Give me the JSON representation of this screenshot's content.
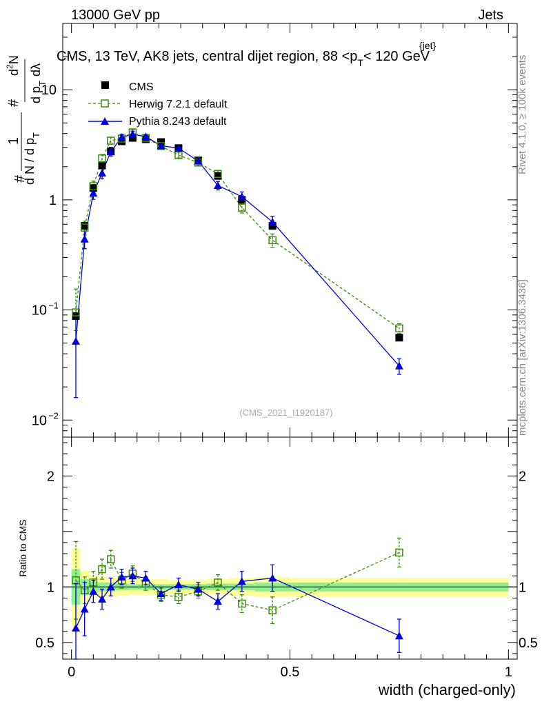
{
  "header": {
    "energy": "13000 GeV pp",
    "category": "Jets"
  },
  "side_labels": {
    "rivet": "Rivet 4.1.0, ≥ 100k events",
    "source": "mcplots.cern.ch [arXiv:1306.3436]"
  },
  "watermark": "(CMS_2021_I1920187)",
  "chart_data": {
    "type": "line",
    "title": "CMS, 13 TeV, AK8 jets, central dijet region, 88 <p_T^{jet}< 120 GeV",
    "title_parts": {
      "main": "CMS, 13 TeV, AK8 jets, central dijet region, 88 <p",
      "sub": "T",
      "sup": "{jet}",
      "tail": "< 120 GeV"
    },
    "xlabel": "width (charged-only)",
    "ylabel": "1/N dN/dp_T dλ",
    "ylabel_parts": {
      "hash1": "#",
      "one": "1",
      "denom": "d N / d p",
      "sub": "T",
      "hash2": "#",
      "d2N": "d",
      "sq": "2",
      "N": "N",
      "dpT": "d p",
      "sub2": "T",
      "dlambda": "dλ"
    },
    "xlim": [
      -0.02,
      1.02
    ],
    "ylim_log": [
      0.007,
      40
    ],
    "ratio_ylabel": "Ratio to CMS",
    "ratio_ylim": [
      0.35,
      2.35
    ],
    "x_ticks": [
      {
        "v": 0,
        "label": "0"
      },
      {
        "v": 0.5,
        "label": "0.5"
      },
      {
        "v": 1,
        "label": "1"
      }
    ],
    "y_ticks": [
      {
        "v": 10,
        "base": "10",
        "exp": ""
      },
      {
        "v": 1,
        "base": "1",
        "exp": ""
      },
      {
        "v": 0.1,
        "base": "10",
        "exp": "−1"
      },
      {
        "v": 0.01,
        "base": "10",
        "exp": "−2"
      }
    ],
    "ratio_ticks": [
      {
        "v": 0.5,
        "label": "0.5"
      },
      {
        "v": 1,
        "label": "1"
      },
      {
        "v": 2,
        "label": "2"
      }
    ],
    "x": [
      0.01,
      0.03,
      0.05,
      0.07,
      0.09,
      0.115,
      0.14,
      0.17,
      0.205,
      0.245,
      0.29,
      0.335,
      0.39,
      0.46,
      0.75
    ],
    "series": [
      {
        "name": "CMS",
        "color": "#000000",
        "marker": "square",
        "values": [
          0.088,
          0.58,
          1.28,
          2.05,
          2.75,
          3.4,
          3.65,
          3.55,
          3.35,
          2.95,
          2.28,
          1.65,
          1.0,
          0.58,
          0.056
        ]
      },
      {
        "name": "Herwig 7.2.1 default",
        "color": "#3a8a0a",
        "marker": "open-square",
        "dash": true,
        "values": [
          0.095,
          0.56,
          1.33,
          2.38,
          3.45,
          3.6,
          4.1,
          3.65,
          3.08,
          2.55,
          2.18,
          1.72,
          0.85,
          0.43,
          0.068
        ],
        "err_lo": [
          0.03,
          0.08,
          0.15,
          0.2,
          0.25,
          0.25,
          0.25,
          0.2,
          0.18,
          0.15,
          0.12,
          0.12,
          0.09,
          0.06,
          0.007
        ],
        "err_hi": [
          0.06,
          0.08,
          0.15,
          0.2,
          0.25,
          0.25,
          0.25,
          0.2,
          0.18,
          0.15,
          0.12,
          0.12,
          0.09,
          0.06,
          0.007
        ]
      },
      {
        "name": "Pythia 8.243 default",
        "color": "#0000dd",
        "marker": "triangle",
        "values": [
          0.052,
          0.44,
          1.15,
          1.75,
          2.75,
          3.7,
          3.95,
          3.75,
          3.1,
          2.95,
          2.25,
          1.35,
          1.07,
          0.63,
          0.031
        ],
        "err_lo": [
          0.036,
          0.08,
          0.14,
          0.2,
          0.25,
          0.25,
          0.25,
          0.2,
          0.18,
          0.15,
          0.12,
          0.12,
          0.11,
          0.08,
          0.005
        ],
        "err_hi": [
          0.04,
          0.08,
          0.14,
          0.2,
          0.25,
          0.25,
          0.25,
          0.2,
          0.18,
          0.15,
          0.12,
          0.12,
          0.11,
          0.08,
          0.005
        ]
      }
    ],
    "ratio": {
      "x": [
        0.01,
        0.03,
        0.05,
        0.07,
        0.09,
        0.115,
        0.14,
        0.17,
        0.205,
        0.245,
        0.29,
        0.335,
        0.39,
        0.46,
        0.75
      ],
      "herwig": [
        1.06,
        0.97,
        1.04,
        1.16,
        1.25,
        1.06,
        1.12,
        1.03,
        0.93,
        0.91,
        0.96,
        1.04,
        0.85,
        0.79,
        1.31
      ],
      "herwig_err": [
        0.35,
        0.12,
        0.1,
        0.09,
        0.08,
        0.07,
        0.07,
        0.06,
        0.06,
        0.06,
        0.06,
        0.07,
        0.08,
        0.12,
        0.13
      ],
      "pythia": [
        0.63,
        0.8,
        0.96,
        0.89,
        1.0,
        1.09,
        1.1,
        1.08,
        0.94,
        1.02,
        0.98,
        0.87,
        1.05,
        1.08,
        0.56
      ],
      "pythia_err": [
        0.4,
        0.24,
        0.1,
        0.09,
        0.08,
        0.07,
        0.07,
        0.06,
        0.06,
        0.06,
        0.06,
        0.07,
        0.09,
        0.12,
        0.15
      ],
      "bands": [
        {
          "x0": 0.0,
          "x1": 0.02,
          "g_lo": 0.84,
          "g_hi": 1.16,
          "y_lo": 0.65,
          "y_hi": 1.35
        },
        {
          "x0": 0.02,
          "x1": 0.04,
          "g_lo": 0.93,
          "g_hi": 1.07,
          "y_lo": 0.85,
          "y_hi": 1.15
        },
        {
          "x0": 0.04,
          "x1": 0.06,
          "g_lo": 0.95,
          "g_hi": 1.05,
          "y_lo": 0.9,
          "y_hi": 1.1
        },
        {
          "x0": 0.06,
          "x1": 0.1,
          "g_lo": 0.96,
          "g_hi": 1.04,
          "y_lo": 0.91,
          "y_hi": 1.09
        },
        {
          "x0": 0.1,
          "x1": 0.13,
          "g_lo": 0.97,
          "g_hi": 1.03,
          "y_lo": 0.92,
          "y_hi": 1.08
        },
        {
          "x0": 0.13,
          "x1": 0.22,
          "g_lo": 0.975,
          "g_hi": 1.025,
          "y_lo": 0.93,
          "y_hi": 1.07
        },
        {
          "x0": 0.22,
          "x1": 0.31,
          "g_lo": 0.975,
          "g_hi": 1.025,
          "y_lo": 0.94,
          "y_hi": 1.06
        },
        {
          "x0": 0.31,
          "x1": 0.36,
          "g_lo": 0.97,
          "g_hi": 1.03,
          "y_lo": 0.93,
          "y_hi": 1.07
        },
        {
          "x0": 0.36,
          "x1": 0.42,
          "g_lo": 0.97,
          "g_hi": 1.03,
          "y_lo": 0.92,
          "y_hi": 1.08
        },
        {
          "x0": 0.42,
          "x1": 0.5,
          "g_lo": 0.96,
          "g_hi": 1.04,
          "y_lo": 0.91,
          "y_hi": 1.09
        },
        {
          "x0": 0.5,
          "x1": 1.0,
          "g_lo": 0.96,
          "g_hi": 1.04,
          "y_lo": 0.91,
          "y_hi": 1.08
        }
      ]
    }
  }
}
